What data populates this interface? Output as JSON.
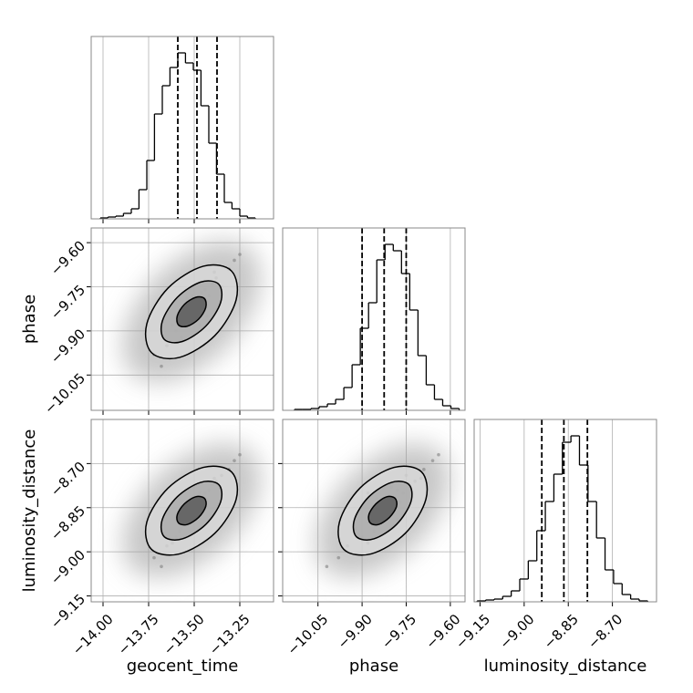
{
  "chart_data": {
    "type": "corner",
    "grid": true,
    "hist_color": "#000000",
    "point_color": "#808080",
    "contour_color": "#000000",
    "parameters": [
      {
        "name": "geocent_time",
        "lim": [
          -14.065,
          -13.065
        ],
        "ticks": [
          {
            "value": -14.0,
            "label": "−14.00"
          },
          {
            "value": -13.75,
            "label": "−13.75"
          },
          {
            "value": -13.5,
            "label": "−13.50"
          },
          {
            "value": -13.25,
            "label": "−13.25"
          }
        ],
        "bins": [
          -14.015,
          -13.973,
          -13.93,
          -13.888,
          -13.845,
          -13.803,
          -13.76,
          -13.718,
          -13.675,
          -13.633,
          -13.59,
          -13.548,
          -13.505,
          -13.463,
          -13.42,
          -13.378,
          -13.335,
          -13.293,
          -13.25,
          -13.208,
          -13.165
        ],
        "counts": [
          1,
          2,
          3,
          6,
          11,
          32,
          64,
          115,
          146,
          166,
          182,
          171,
          163,
          124,
          83,
          49,
          18,
          11,
          3,
          1
        ],
        "hist_ylim": [
          0,
          200
        ],
        "quantiles": [
          -13.59,
          -13.485,
          -13.375
        ],
        "samples": [
          -13.72,
          -13.65,
          -13.6,
          -13.58,
          -13.55,
          -13.53,
          -13.52,
          -13.5,
          -13.49,
          -13.48,
          -13.47,
          -13.46,
          -13.45,
          -13.44,
          -13.42,
          -13.4,
          -13.38,
          -13.35,
          -13.31,
          -13.28,
          -13.62,
          -13.57,
          -13.51,
          -13.43,
          -13.36,
          -13.68,
          -13.54,
          -13.47,
          -13.39,
          -13.25
        ],
        "contours": []
      },
      {
        "name": "phase",
        "lim": [
          -10.17,
          -9.55
        ],
        "ticks": [
          {
            "value": -10.05,
            "label": "−10.05"
          },
          {
            "value": -9.9,
            "label": "−9.90"
          },
          {
            "value": -9.75,
            "label": "−9.75"
          },
          {
            "value": -9.6,
            "label": "−9.60"
          }
        ],
        "bins": [
          -10.13,
          -10.102,
          -10.074,
          -10.046,
          -10.018,
          -9.99,
          -9.962,
          -9.934,
          -9.906,
          -9.878,
          -9.85,
          -9.822,
          -9.794,
          -9.766,
          -9.738,
          -9.71,
          -9.682,
          -9.654,
          -9.626,
          -9.598,
          -9.57
        ],
        "counts": [
          1,
          1,
          2,
          4,
          7,
          12,
          25,
          50,
          90,
          118,
          165,
          182,
          175,
          150,
          110,
          60,
          28,
          12,
          5,
          2
        ],
        "hist_ylim": [
          0,
          200
        ],
        "quantiles": [
          -9.9,
          -9.825,
          -9.75
        ],
        "samples": [
          -9.98,
          -9.95,
          -9.9,
          -9.86,
          -9.88,
          -9.84,
          -9.8,
          -9.83,
          -9.86,
          -9.79,
          -9.82,
          -9.77,
          -9.81,
          -9.76,
          -9.78,
          -9.74,
          -9.72,
          -9.75,
          -9.69,
          -9.66,
          -9.88,
          -9.92,
          -9.78,
          -9.85,
          -9.8,
          -10.02,
          -9.79,
          -9.88,
          -9.7,
          -9.64
        ],
        "contours": [
          [
            {
              "x": [
                -13.296,
                -13.27,
                -13.387,
                -13.58,
                -13.734,
                -13.76,
                -13.643,
                -13.45
              ],
              "y": [
                -9.696,
                -9.794,
                -9.916,
                -9.99,
                -9.974,
                -9.876,
                -9.754,
                -9.68
              ]
            },
            {
              "x": [
                -13.366,
                -13.355,
                -13.437,
                -13.565,
                -13.664,
                -13.675,
                -13.593,
                -13.465
              ],
              "y": [
                -9.741,
                -9.803,
                -9.884,
                -9.936,
                -9.929,
                -9.867,
                -9.786,
                -9.734
              ]
            },
            {
              "x": [
                -13.444,
                -13.437,
                -13.476,
                -13.538,
                -13.586,
                -13.593,
                -13.554,
                -13.492
              ],
              "y": [
                -9.79,
                -9.821,
                -9.86,
                -9.884,
                -9.88,
                -9.849,
                -9.81,
                -9.786
              ]
            }
          ]
        ]
      },
      {
        "name": "luminosity_distance",
        "lim": [
          -9.17,
          -8.55
        ],
        "ticks": [
          {
            "value": -9.15,
            "label": "−9.15"
          },
          {
            "value": -9.0,
            "label": "−9.00"
          },
          {
            "value": -8.85,
            "label": "−8.85"
          },
          {
            "value": -8.7,
            "label": "−8.70"
          }
        ],
        "bins": [
          -9.16,
          -9.131,
          -9.102,
          -9.073,
          -9.044,
          -9.015,
          -8.986,
          -8.957,
          -8.928,
          -8.899,
          -8.87,
          -8.841,
          -8.812,
          -8.783,
          -8.754,
          -8.725,
          -8.696,
          -8.667,
          -8.638,
          -8.609,
          -8.58
        ],
        "counts": [
          1,
          2,
          3,
          6,
          12,
          25,
          45,
          78,
          110,
          140,
          175,
          182,
          150,
          110,
          70,
          35,
          20,
          8,
          3,
          1
        ],
        "hist_ylim": [
          0,
          200
        ],
        "quantiles": [
          -8.94,
          -8.865,
          -8.785
        ],
        "samples": [
          -9.02,
          -8.98,
          -8.95,
          -8.93,
          -8.9,
          -8.88,
          -8.86,
          -8.87,
          -8.85,
          -8.84,
          -8.86,
          -8.83,
          -8.81,
          -8.8,
          -8.79,
          -8.77,
          -8.76,
          -8.74,
          -8.72,
          -8.69,
          -8.97,
          -8.92,
          -8.89,
          -8.82,
          -8.78,
          -9.05,
          -8.91,
          -8.8,
          -8.75,
          -8.67
        ],
        "contours": [
          [
            {
              "x": [
                -13.296,
                -13.27,
                -13.387,
                -13.58,
                -13.734,
                -13.76,
                -13.643,
                -13.45
              ],
              "y": [
                -8.728,
                -8.821,
                -8.937,
                -9.007,
                -8.992,
                -8.899,
                -8.783,
                -8.713
              ]
            },
            {
              "x": [
                -13.366,
                -13.355,
                -13.437,
                -13.565,
                -13.664,
                -13.675,
                -13.593,
                -13.465
              ],
              "y": [
                -8.771,
                -8.83,
                -8.907,
                -8.956,
                -8.949,
                -8.89,
                -8.813,
                -8.764
              ]
            },
            {
              "x": [
                -13.444,
                -13.437,
                -13.476,
                -13.538,
                -13.586,
                -13.593,
                -13.554,
                -13.492
              ],
              "y": [
                -8.818,
                -8.846,
                -8.883,
                -8.907,
                -8.902,
                -8.874,
                -8.837,
                -8.813
              ]
            }
          ],
          [
            {
              "x": [
                -9.698,
                -9.683,
                -9.753,
                -9.869,
                -9.962,
                -9.977,
                -9.907,
                -9.791
              ],
              "y": [
                -8.728,
                -8.821,
                -8.937,
                -9.007,
                -8.992,
                -8.899,
                -8.783,
                -8.713
              ]
            },
            {
              "x": [
                -9.741,
                -9.734,
                -9.783,
                -9.86,
                -9.919,
                -9.926,
                -9.877,
                -9.8
              ],
              "y": [
                -8.771,
                -8.83,
                -8.907,
                -8.956,
                -8.949,
                -8.89,
                -8.813,
                -8.764
              ]
            },
            {
              "x": [
                -9.788,
                -9.783,
                -9.807,
                -9.844,
                -9.872,
                -9.877,
                -9.853,
                -9.816
              ],
              "y": [
                -8.818,
                -8.846,
                -8.883,
                -8.907,
                -8.902,
                -8.874,
                -8.837,
                -8.813
              ]
            }
          ]
        ]
      }
    ]
  }
}
